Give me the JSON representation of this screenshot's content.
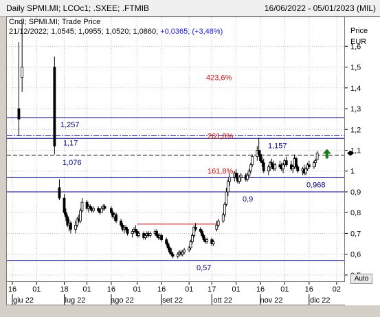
{
  "header": {
    "title": "Daily SPMI.MI; LCOc1; .SXEE; .FTMIB",
    "date_range": "16/06/2022 - 05/01/2023 (MIL)"
  },
  "legend": {
    "line1": "Cndl; SPMI.MI; Trade Price",
    "line2_date": "21/12/2022; 1,0545; 1,0955; 1,0520; 1,0860;",
    "line2_change": "+0,0365; (+3,48%)"
  },
  "axis": {
    "title": "Price",
    "unit": "EUR",
    "auto_button": "Auto"
  },
  "chart_data": {
    "type": "candlestick",
    "y_range": [
      0.47,
      1.74
    ],
    "y_ticks": [
      {
        "value": 1.6,
        "label": "1,6"
      },
      {
        "value": 1.5,
        "label": "1,5"
      },
      {
        "value": 1.4,
        "label": "1,4"
      },
      {
        "value": 1.3,
        "label": "1,3"
      },
      {
        "value": 1.2,
        "label": "1,2"
      },
      {
        "value": 1.1,
        "label": "1,1"
      },
      {
        "value": 1.0,
        "label": "1"
      },
      {
        "value": 0.9,
        "label": "0,9"
      },
      {
        "value": 0.8,
        "label": "0,8"
      },
      {
        "value": 0.7,
        "label": "0,7"
      },
      {
        "value": 0.6,
        "label": "0,6"
      },
      {
        "value": 0.5,
        "label": "0,5"
      }
    ],
    "x_ticks_top": [
      "16",
      "01",
      "18",
      "01",
      "16",
      "01",
      "16",
      "01",
      "17",
      "01",
      "16",
      "01",
      "16",
      "02"
    ],
    "x_tick_dates": [
      "2022-06-16",
      "2022-07-01",
      "2022-07-18",
      "2022-08-01",
      "2022-08-16",
      "2022-09-01",
      "2022-09-16",
      "2022-10-03",
      "2022-10-17",
      "2022-11-01",
      "2022-11-16",
      "2022-12-01",
      "2022-12-16",
      "2023-01-02"
    ],
    "x_ticks_month": [
      {
        "label": "giu 22",
        "date": "2022-06-16"
      },
      {
        "label": "lug 22",
        "date": "2022-07-18"
      },
      {
        "label": "ago 22",
        "date": "2022-08-16"
      },
      {
        "label": "set 22",
        "date": "2022-09-16"
      },
      {
        "label": "ott 22",
        "date": "2022-10-17"
      },
      {
        "label": "nov 22",
        "date": "2022-11-16"
      },
      {
        "label": "dic 22",
        "date": "2022-12-16"
      }
    ],
    "x_range": [
      "2022-06-16",
      "2023-01-05"
    ],
    "horizontal_levels": [
      {
        "value": 1.257,
        "label": "1,257",
        "style": "solid"
      },
      {
        "value": 1.17,
        "label": "1,17",
        "style": "dashdot"
      },
      {
        "value": 1.157,
        "label": "1,157",
        "style": "solid"
      },
      {
        "value": 1.076,
        "label": "1,076",
        "style": "dashed"
      },
      {
        "value": 0.968,
        "label": "0,968",
        "style": "solid"
      },
      {
        "value": 0.9,
        "label": "0,9",
        "style": "solid"
      },
      {
        "value": 0.57,
        "label": "0,57",
        "style": "solid"
      }
    ],
    "fib_labels": [
      {
        "label": "423,6%",
        "value": 1.45
      },
      {
        "label": "261,8%",
        "value": 1.17
      },
      {
        "label": "161,8%",
        "value": 1.0
      }
    ],
    "trendline": {
      "from": [
        "2022-09-01",
        0.745
      ],
      "to": [
        "2022-10-20",
        0.745
      ]
    },
    "last_price": 1.086,
    "candles": [
      {
        "d": "2022-06-20",
        "o": 1.3,
        "h": 1.62,
        "l": 1.17,
        "c": 1.25
      },
      {
        "d": "2022-06-22",
        "o": 1.45,
        "h": 1.72,
        "l": 1.38,
        "c": 1.5
      },
      {
        "d": "2022-07-12",
        "o": 1.5,
        "h": 1.55,
        "l": 1.08,
        "c": 1.12
      },
      {
        "d": "2022-07-15",
        "o": 0.92,
        "h": 0.96,
        "l": 0.86,
        "c": 0.87
      },
      {
        "d": "2022-07-18",
        "o": 0.87,
        "h": 0.89,
        "l": 0.79,
        "c": 0.8
      },
      {
        "d": "2022-07-19",
        "o": 0.8,
        "h": 0.82,
        "l": 0.76,
        "c": 0.78
      },
      {
        "d": "2022-07-20",
        "o": 0.78,
        "h": 0.79,
        "l": 0.73,
        "c": 0.74
      },
      {
        "d": "2022-07-21",
        "o": 0.74,
        "h": 0.77,
        "l": 0.71,
        "c": 0.75
      },
      {
        "d": "2022-07-22",
        "o": 0.75,
        "h": 0.76,
        "l": 0.7,
        "c": 0.72
      },
      {
        "d": "2022-07-25",
        "o": 0.72,
        "h": 0.76,
        "l": 0.7,
        "c": 0.74
      },
      {
        "d": "2022-07-26",
        "o": 0.74,
        "h": 0.78,
        "l": 0.73,
        "c": 0.77
      },
      {
        "d": "2022-07-27",
        "o": 0.77,
        "h": 0.79,
        "l": 0.75,
        "c": 0.76
      },
      {
        "d": "2022-07-28",
        "o": 0.76,
        "h": 0.82,
        "l": 0.75,
        "c": 0.81
      },
      {
        "d": "2022-07-29",
        "o": 0.81,
        "h": 0.87,
        "l": 0.8,
        "c": 0.85
      },
      {
        "d": "2022-08-01",
        "o": 0.85,
        "h": 0.86,
        "l": 0.81,
        "c": 0.82
      },
      {
        "d": "2022-08-02",
        "o": 0.82,
        "h": 0.84,
        "l": 0.8,
        "c": 0.83
      },
      {
        "d": "2022-08-03",
        "o": 0.83,
        "h": 0.84,
        "l": 0.81,
        "c": 0.82
      },
      {
        "d": "2022-08-04",
        "o": 0.82,
        "h": 0.83,
        "l": 0.8,
        "c": 0.81
      },
      {
        "d": "2022-08-05",
        "o": 0.81,
        "h": 0.83,
        "l": 0.8,
        "c": 0.82
      },
      {
        "d": "2022-08-08",
        "o": 0.82,
        "h": 0.83,
        "l": 0.8,
        "c": 0.81
      },
      {
        "d": "2022-08-09",
        "o": 0.81,
        "h": 0.82,
        "l": 0.79,
        "c": 0.8
      },
      {
        "d": "2022-08-10",
        "o": 0.8,
        "h": 0.83,
        "l": 0.8,
        "c": 0.82
      },
      {
        "d": "2022-08-11",
        "o": 0.82,
        "h": 0.84,
        "l": 0.81,
        "c": 0.83
      },
      {
        "d": "2022-08-12",
        "o": 0.83,
        "h": 0.84,
        "l": 0.81,
        "c": 0.82
      },
      {
        "d": "2022-08-16",
        "o": 0.82,
        "h": 0.83,
        "l": 0.79,
        "c": 0.8
      },
      {
        "d": "2022-08-17",
        "o": 0.8,
        "h": 0.81,
        "l": 0.77,
        "c": 0.78
      },
      {
        "d": "2022-08-18",
        "o": 0.78,
        "h": 0.8,
        "l": 0.76,
        "c": 0.79
      },
      {
        "d": "2022-08-19",
        "o": 0.79,
        "h": 0.8,
        "l": 0.75,
        "c": 0.76
      },
      {
        "d": "2022-08-22",
        "o": 0.76,
        "h": 0.77,
        "l": 0.73,
        "c": 0.74
      },
      {
        "d": "2022-08-23",
        "o": 0.74,
        "h": 0.75,
        "l": 0.71,
        "c": 0.72
      },
      {
        "d": "2022-08-24",
        "o": 0.72,
        "h": 0.74,
        "l": 0.7,
        "c": 0.73
      },
      {
        "d": "2022-08-25",
        "o": 0.73,
        "h": 0.74,
        "l": 0.71,
        "c": 0.72
      },
      {
        "d": "2022-08-26",
        "o": 0.72,
        "h": 0.73,
        "l": 0.69,
        "c": 0.7
      },
      {
        "d": "2022-08-29",
        "o": 0.7,
        "h": 0.72,
        "l": 0.68,
        "c": 0.71
      },
      {
        "d": "2022-08-30",
        "o": 0.71,
        "h": 0.73,
        "l": 0.7,
        "c": 0.72
      },
      {
        "d": "2022-08-31",
        "o": 0.72,
        "h": 0.74,
        "l": 0.7,
        "c": 0.71
      },
      {
        "d": "2022-09-01",
        "o": 0.71,
        "h": 0.72,
        "l": 0.68,
        "c": 0.69
      },
      {
        "d": "2022-09-02",
        "o": 0.69,
        "h": 0.71,
        "l": 0.68,
        "c": 0.7
      },
      {
        "d": "2022-09-05",
        "o": 0.7,
        "h": 0.71,
        "l": 0.67,
        "c": 0.68
      },
      {
        "d": "2022-09-06",
        "o": 0.68,
        "h": 0.7,
        "l": 0.67,
        "c": 0.69
      },
      {
        "d": "2022-09-07",
        "o": 0.69,
        "h": 0.71,
        "l": 0.68,
        "c": 0.7
      },
      {
        "d": "2022-09-08",
        "o": 0.7,
        "h": 0.71,
        "l": 0.68,
        "c": 0.69
      },
      {
        "d": "2022-09-09",
        "o": 0.69,
        "h": 0.71,
        "l": 0.68,
        "c": 0.7
      },
      {
        "d": "2022-09-12",
        "o": 0.7,
        "h": 0.72,
        "l": 0.69,
        "c": 0.71
      },
      {
        "d": "2022-09-13",
        "o": 0.71,
        "h": 0.72,
        "l": 0.68,
        "c": 0.69
      },
      {
        "d": "2022-09-14",
        "o": 0.69,
        "h": 0.7,
        "l": 0.67,
        "c": 0.68
      },
      {
        "d": "2022-09-15",
        "o": 0.68,
        "h": 0.7,
        "l": 0.67,
        "c": 0.69
      },
      {
        "d": "2022-09-16",
        "o": 0.69,
        "h": 0.7,
        "l": 0.66,
        "c": 0.67
      },
      {
        "d": "2022-09-19",
        "o": 0.67,
        "h": 0.68,
        "l": 0.64,
        "c": 0.65
      },
      {
        "d": "2022-09-20",
        "o": 0.65,
        "h": 0.66,
        "l": 0.62,
        "c": 0.63
      },
      {
        "d": "2022-09-21",
        "o": 0.63,
        "h": 0.64,
        "l": 0.6,
        "c": 0.61
      },
      {
        "d": "2022-09-22",
        "o": 0.61,
        "h": 0.63,
        "l": 0.59,
        "c": 0.6
      },
      {
        "d": "2022-09-23",
        "o": 0.6,
        "h": 0.61,
        "l": 0.58,
        "c": 0.59
      },
      {
        "d": "2022-09-26",
        "o": 0.59,
        "h": 0.61,
        "l": 0.58,
        "c": 0.6
      },
      {
        "d": "2022-09-27",
        "o": 0.6,
        "h": 0.62,
        "l": 0.59,
        "c": 0.61
      },
      {
        "d": "2022-09-28",
        "o": 0.61,
        "h": 0.62,
        "l": 0.59,
        "c": 0.6
      },
      {
        "d": "2022-09-29",
        "o": 0.6,
        "h": 0.62,
        "l": 0.59,
        "c": 0.61
      },
      {
        "d": "2022-09-30",
        "o": 0.61,
        "h": 0.63,
        "l": 0.6,
        "c": 0.62
      },
      {
        "d": "2022-10-03",
        "o": 0.62,
        "h": 0.64,
        "l": 0.61,
        "c": 0.63
      },
      {
        "d": "2022-10-04",
        "o": 0.63,
        "h": 0.67,
        "l": 0.62,
        "c": 0.66
      },
      {
        "d": "2022-10-05",
        "o": 0.66,
        "h": 0.7,
        "l": 0.65,
        "c": 0.69
      },
      {
        "d": "2022-10-06",
        "o": 0.69,
        "h": 0.74,
        "l": 0.68,
        "c": 0.73
      },
      {
        "d": "2022-10-07",
        "o": 0.73,
        "h": 0.75,
        "l": 0.71,
        "c": 0.72
      },
      {
        "d": "2022-10-10",
        "o": 0.72,
        "h": 0.73,
        "l": 0.7,
        "c": 0.71
      },
      {
        "d": "2022-10-11",
        "o": 0.71,
        "h": 0.72,
        "l": 0.68,
        "c": 0.69
      },
      {
        "d": "2022-10-12",
        "o": 0.69,
        "h": 0.7,
        "l": 0.66,
        "c": 0.67
      },
      {
        "d": "2022-10-13",
        "o": 0.67,
        "h": 0.68,
        "l": 0.65,
        "c": 0.66
      },
      {
        "d": "2022-10-14",
        "o": 0.66,
        "h": 0.68,
        "l": 0.65,
        "c": 0.67
      },
      {
        "d": "2022-10-17",
        "o": 0.67,
        "h": 0.68,
        "l": 0.64,
        "c": 0.65
      },
      {
        "d": "2022-10-18",
        "o": 0.65,
        "h": 0.67,
        "l": 0.64,
        "c": 0.66
      },
      {
        "d": "2022-10-20",
        "o": 0.72,
        "h": 0.76,
        "l": 0.71,
        "c": 0.74
      },
      {
        "d": "2022-10-21",
        "o": 0.74,
        "h": 0.77,
        "l": 0.73,
        "c": 0.76
      },
      {
        "d": "2022-10-24",
        "o": 0.76,
        "h": 0.8,
        "l": 0.75,
        "c": 0.79
      },
      {
        "d": "2022-10-25",
        "o": 0.79,
        "h": 0.85,
        "l": 0.78,
        "c": 0.84
      },
      {
        "d": "2022-10-26",
        "o": 0.84,
        "h": 0.92,
        "l": 0.83,
        "c": 0.9
      },
      {
        "d": "2022-10-27",
        "o": 0.9,
        "h": 0.96,
        "l": 0.88,
        "c": 0.95
      },
      {
        "d": "2022-10-28",
        "o": 0.95,
        "h": 0.99,
        "l": 0.93,
        "c": 0.97
      },
      {
        "d": "2022-10-31",
        "o": 0.97,
        "h": 1.0,
        "l": 0.95,
        "c": 0.99
      },
      {
        "d": "2022-11-01",
        "o": 0.99,
        "h": 1.01,
        "l": 0.96,
        "c": 0.97
      },
      {
        "d": "2022-11-02",
        "o": 0.97,
        "h": 0.99,
        "l": 0.94,
        "c": 0.95
      },
      {
        "d": "2022-11-03",
        "o": 0.95,
        "h": 0.98,
        "l": 0.94,
        "c": 0.97
      },
      {
        "d": "2022-11-04",
        "o": 0.97,
        "h": 0.99,
        "l": 0.95,
        "c": 0.98
      },
      {
        "d": "2022-11-07",
        "o": 0.98,
        "h": 0.99,
        "l": 0.95,
        "c": 0.96
      },
      {
        "d": "2022-11-08",
        "o": 0.96,
        "h": 0.99,
        "l": 0.95,
        "c": 0.98
      },
      {
        "d": "2022-11-09",
        "o": 0.98,
        "h": 1.01,
        "l": 0.97,
        "c": 1.0
      },
      {
        "d": "2022-11-10",
        "o": 1.0,
        "h": 1.04,
        "l": 0.99,
        "c": 1.03
      },
      {
        "d": "2022-11-11",
        "o": 1.03,
        "h": 1.08,
        "l": 1.02,
        "c": 1.07
      },
      {
        "d": "2022-11-14",
        "o": 1.07,
        "h": 1.12,
        "l": 1.05,
        "c": 1.1
      },
      {
        "d": "2022-11-15",
        "o": 1.1,
        "h": 1.16,
        "l": 1.07,
        "c": 1.08
      },
      {
        "d": "2022-11-16",
        "o": 1.08,
        "h": 1.1,
        "l": 1.04,
        "c": 1.05
      },
      {
        "d": "2022-11-17",
        "o": 1.05,
        "h": 1.07,
        "l": 1.02,
        "c": 1.04
      },
      {
        "d": "2022-11-18",
        "o": 1.04,
        "h": 1.06,
        "l": 0.99,
        "c": 1.0
      },
      {
        "d": "2022-11-21",
        "o": 1.0,
        "h": 1.03,
        "l": 0.98,
        "c": 1.02
      },
      {
        "d": "2022-11-22",
        "o": 1.02,
        "h": 1.05,
        "l": 1.0,
        "c": 1.04
      },
      {
        "d": "2022-11-23",
        "o": 1.04,
        "h": 1.06,
        "l": 1.01,
        "c": 1.03
      },
      {
        "d": "2022-11-24",
        "o": 1.03,
        "h": 1.05,
        "l": 1.0,
        "c": 1.01
      },
      {
        "d": "2022-11-25",
        "o": 1.01,
        "h": 1.04,
        "l": 1.0,
        "c": 1.03
      },
      {
        "d": "2022-11-28",
        "o": 1.03,
        "h": 1.05,
        "l": 1.01,
        "c": 1.02
      },
      {
        "d": "2022-11-29",
        "o": 1.02,
        "h": 1.04,
        "l": 1.0,
        "c": 1.01
      },
      {
        "d": "2022-11-30",
        "o": 1.01,
        "h": 1.04,
        "l": 0.99,
        "c": 1.03
      },
      {
        "d": "2022-12-01",
        "o": 1.03,
        "h": 1.06,
        "l": 1.02,
        "c": 1.05
      },
      {
        "d": "2022-12-02",
        "o": 1.05,
        "h": 1.07,
        "l": 1.02,
        "c": 1.03
      },
      {
        "d": "2022-12-05",
        "o": 1.03,
        "h": 1.05,
        "l": 1.0,
        "c": 1.01
      },
      {
        "d": "2022-12-06",
        "o": 1.01,
        "h": 1.03,
        "l": 0.99,
        "c": 1.02
      },
      {
        "d": "2022-12-07",
        "o": 1.02,
        "h": 1.08,
        "l": 1.01,
        "c": 1.06
      },
      {
        "d": "2022-12-08",
        "o": 1.06,
        "h": 1.07,
        "l": 1.01,
        "c": 1.02
      },
      {
        "d": "2022-12-09",
        "o": 1.02,
        "h": 1.03,
        "l": 0.99,
        "c": 1.0
      },
      {
        "d": "2022-12-12",
        "o": 1.0,
        "h": 1.02,
        "l": 0.98,
        "c": 1.01
      },
      {
        "d": "2022-12-13",
        "o": 1.01,
        "h": 1.03,
        "l": 0.98,
        "c": 0.99
      },
      {
        "d": "2022-12-14",
        "o": 0.99,
        "h": 1.02,
        "l": 0.98,
        "c": 1.01
      },
      {
        "d": "2022-12-15",
        "o": 1.01,
        "h": 1.04,
        "l": 1.0,
        "c": 1.03
      },
      {
        "d": "2022-12-16",
        "o": 1.03,
        "h": 1.05,
        "l": 1.01,
        "c": 1.02
      },
      {
        "d": "2022-12-19",
        "o": 1.02,
        "h": 1.05,
        "l": 1.01,
        "c": 1.04
      },
      {
        "d": "2022-12-20",
        "o": 1.04,
        "h": 1.06,
        "l": 1.02,
        "c": 1.05
      },
      {
        "d": "2022-12-21",
        "o": 1.0545,
        "h": 1.0955,
        "l": 1.052,
        "c": 1.086
      }
    ]
  },
  "colors": {
    "level_line": "#00007f",
    "fib_text": "#d01010",
    "trendline": "#d01010",
    "candle": "#000000",
    "arrow": "#1a7a1a",
    "grid": "#c8c8c8",
    "change_text": "#1a1ad0"
  }
}
